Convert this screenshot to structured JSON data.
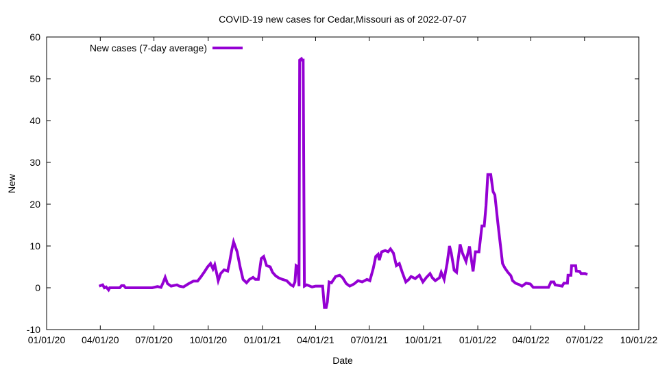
{
  "chart_data": {
    "type": "line",
    "title": "COVID-19 new cases for Cedar,Missouri as of 2022-07-07",
    "xlabel": "Date",
    "ylabel": "New",
    "x_unit": "days since 2020-01-01",
    "xlim": [
      0,
      1004
    ],
    "ylim": [
      -10,
      60
    ],
    "yticks": [
      -10,
      0,
      10,
      20,
      30,
      40,
      50,
      60
    ],
    "xticks": [
      {
        "day": 0,
        "label": "01/01/20"
      },
      {
        "day": 91,
        "label": "04/01/20"
      },
      {
        "day": 182,
        "label": "07/01/20"
      },
      {
        "day": 274,
        "label": "10/01/20"
      },
      {
        "day": 366,
        "label": "01/01/21"
      },
      {
        "day": 456,
        "label": "04/01/21"
      },
      {
        "day": 547,
        "label": "07/01/21"
      },
      {
        "day": 639,
        "label": "10/01/21"
      },
      {
        "day": 731,
        "label": "01/01/22"
      },
      {
        "day": 821,
        "label": "04/01/22"
      },
      {
        "day": 912,
        "label": "07/01/22"
      },
      {
        "day": 1004,
        "label": "10/01/22"
      }
    ],
    "grid": false,
    "legend_position": "top-left",
    "series": [
      {
        "name": "New cases (7-day average)",
        "color": "#9400d3",
        "points": [
          [
            89,
            0.4
          ],
          [
            95,
            0.7
          ],
          [
            98,
            0
          ],
          [
            101,
            0.2
          ],
          [
            105,
            -0.5
          ],
          [
            107,
            0
          ],
          [
            124,
            0
          ],
          [
            127,
            0.5
          ],
          [
            131,
            0.5
          ],
          [
            134,
            0
          ],
          [
            179,
            0
          ],
          [
            188,
            0.3
          ],
          [
            194,
            0.1
          ],
          [
            198,
            1.4
          ],
          [
            201,
            2.5
          ],
          [
            205,
            1
          ],
          [
            211,
            0.4
          ],
          [
            221,
            0.7
          ],
          [
            225,
            0.4
          ],
          [
            232,
            0.2
          ],
          [
            241,
            1
          ],
          [
            249,
            1.6
          ],
          [
            256,
            1.6
          ],
          [
            261,
            2.5
          ],
          [
            267,
            3.7
          ],
          [
            273,
            5
          ],
          [
            278,
            5.8
          ],
          [
            282,
            4.5
          ],
          [
            285,
            5.5
          ],
          [
            288,
            3.7
          ],
          [
            291,
            1.7
          ],
          [
            295,
            3.4
          ],
          [
            301,
            4.3
          ],
          [
            307,
            4
          ],
          [
            310,
            6
          ],
          [
            314,
            9.1
          ],
          [
            317,
            11
          ],
          [
            323,
            8.6
          ],
          [
            328,
            5
          ],
          [
            333,
            2
          ],
          [
            339,
            1.2
          ],
          [
            344,
            2
          ],
          [
            350,
            2.5
          ],
          [
            354,
            2
          ],
          [
            359,
            2
          ],
          [
            364,
            7
          ],
          [
            368,
            7.5
          ],
          [
            373,
            5.3
          ],
          [
            379,
            5
          ],
          [
            383,
            3.7
          ],
          [
            388,
            2.9
          ],
          [
            393,
            2.4
          ],
          [
            400,
            2
          ],
          [
            407,
            1.7
          ],
          [
            414,
            0.7
          ],
          [
            418,
            0.4
          ],
          [
            421,
            1.4
          ],
          [
            423,
            5.3
          ],
          [
            426,
            5
          ],
          [
            428,
            0.4
          ],
          [
            429,
            54.5
          ],
          [
            432,
            54.8
          ],
          [
            433,
            54.5
          ],
          [
            435,
            54.5
          ],
          [
            437,
            0.4
          ],
          [
            441,
            0.7
          ],
          [
            450,
            0.2
          ],
          [
            456,
            0.4
          ],
          [
            468,
            0.4
          ],
          [
            471,
            -4.7
          ],
          [
            474,
            -4.7
          ],
          [
            476,
            -3.4
          ],
          [
            479,
            1.4
          ],
          [
            483,
            1.2
          ],
          [
            490,
            2.7
          ],
          [
            497,
            3
          ],
          [
            502,
            2.4
          ],
          [
            508,
            1
          ],
          [
            514,
            0.4
          ],
          [
            521,
            0.9
          ],
          [
            528,
            1.7
          ],
          [
            535,
            1.4
          ],
          [
            543,
            2
          ],
          [
            548,
            1.7
          ],
          [
            554,
            4.7
          ],
          [
            558,
            7.5
          ],
          [
            562,
            8
          ],
          [
            564,
            6.6
          ],
          [
            568,
            8.6
          ],
          [
            574,
            8.9
          ],
          [
            579,
            8.6
          ],
          [
            583,
            9.3
          ],
          [
            588,
            8.3
          ],
          [
            593,
            5.3
          ],
          [
            598,
            5.8
          ],
          [
            603,
            3.7
          ],
          [
            609,
            1.4
          ],
          [
            614,
            2
          ],
          [
            618,
            2.7
          ],
          [
            625,
            2.2
          ],
          [
            632,
            3
          ],
          [
            638,
            1.4
          ],
          [
            644,
            2.5
          ],
          [
            650,
            3.4
          ],
          [
            654,
            2.4
          ],
          [
            659,
            1.7
          ],
          [
            666,
            2.4
          ],
          [
            669,
            3.7
          ],
          [
            674,
            2
          ],
          [
            679,
            5.8
          ],
          [
            683,
            10
          ],
          [
            686,
            8.4
          ],
          [
            691,
            4.2
          ],
          [
            695,
            3.7
          ],
          [
            701,
            10.4
          ],
          [
            705,
            8.3
          ],
          [
            711,
            6.3
          ],
          [
            717,
            9.9
          ],
          [
            723,
            3.9
          ],
          [
            727,
            8.6
          ],
          [
            733,
            8.6
          ],
          [
            738,
            14.8
          ],
          [
            742,
            14.8
          ],
          [
            745,
            19.7
          ],
          [
            748,
            27.1
          ],
          [
            753,
            27.1
          ],
          [
            757,
            23
          ],
          [
            760,
            22.2
          ],
          [
            765,
            15.6
          ],
          [
            768,
            11.9
          ],
          [
            773,
            5.8
          ],
          [
            777,
            4.7
          ],
          [
            782,
            3.7
          ],
          [
            787,
            2.9
          ],
          [
            790,
            1.7
          ],
          [
            795,
            1.1
          ],
          [
            802,
            0.7
          ],
          [
            806,
            0.4
          ],
          [
            813,
            1.1
          ],
          [
            820,
            0.9
          ],
          [
            825,
            0.1
          ],
          [
            851,
            0.1
          ],
          [
            855,
            1.4
          ],
          [
            860,
            1.4
          ],
          [
            862,
            0.7
          ],
          [
            874,
            0.4
          ],
          [
            877,
            1.1
          ],
          [
            883,
            1.1
          ],
          [
            884,
            3
          ],
          [
            889,
            3
          ],
          [
            890,
            5.3
          ],
          [
            897,
            5.3
          ],
          [
            898,
            4
          ],
          [
            904,
            3.9
          ],
          [
            906,
            3.4
          ],
          [
            913,
            3.4
          ],
          [
            917,
            3.2
          ]
        ]
      }
    ]
  }
}
